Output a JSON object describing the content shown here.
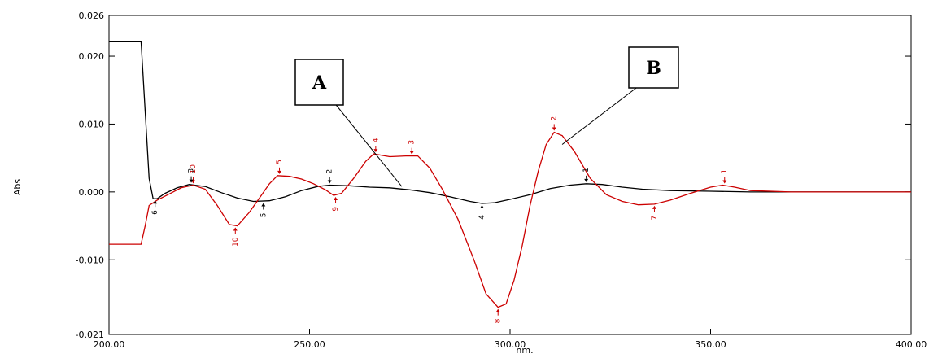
{
  "chart_data": {
    "type": "line",
    "xlabel": "nm.",
    "ylabel": "Abs",
    "xlim": [
      200,
      400
    ],
    "ylim": [
      -0.021,
      0.026
    ],
    "grid": false,
    "x_ticks": [
      {
        "value": 200,
        "label": "200.00"
      },
      {
        "value": 250,
        "label": "250.00"
      },
      {
        "value": 300,
        "label": "300.00"
      },
      {
        "value": 350,
        "label": "350.00"
      },
      {
        "value": 400,
        "label": "400.00"
      }
    ],
    "y_ticks": [
      {
        "value": 0.026,
        "label": "0.026"
      },
      {
        "value": 0.02,
        "label": "0.020"
      },
      {
        "value": 0.01,
        "label": "0.010"
      },
      {
        "value": 0.0,
        "label": "0.000"
      },
      {
        "value": -0.01,
        "label": "-0.010"
      },
      {
        "value": -0.021,
        "label": "-0.021"
      }
    ],
    "series": [
      {
        "color": "#000000",
        "points": [
          [
            200,
            0.0222
          ],
          [
            208,
            0.0222
          ],
          [
            209,
            0.012
          ],
          [
            210,
            0.002
          ],
          [
            211,
            -0.001
          ],
          [
            212,
            -0.001
          ],
          [
            214,
            -0.0002
          ],
          [
            217,
            0.0006
          ],
          [
            220,
            0.0011
          ],
          [
            224,
            0.0008
          ],
          [
            228,
            -0.0001
          ],
          [
            232,
            -0.0009
          ],
          [
            236,
            -0.0014
          ],
          [
            240,
            -0.0013
          ],
          [
            244,
            -0.0007
          ],
          [
            248,
            0.0002
          ],
          [
            252,
            0.0008
          ],
          [
            255,
            0.001
          ],
          [
            260,
            0.0009
          ],
          [
            265,
            0.0007
          ],
          [
            270,
            0.0006
          ],
          [
            275,
            0.0003
          ],
          [
            280,
            -0.0001
          ],
          [
            285,
            -0.0007
          ],
          [
            290,
            -0.0014
          ],
          [
            293,
            -0.0017
          ],
          [
            296,
            -0.0016
          ],
          [
            300,
            -0.0011
          ],
          [
            305,
            -0.0004
          ],
          [
            310,
            0.0005
          ],
          [
            315,
            0.001
          ],
          [
            319,
            0.0012
          ],
          [
            323,
            0.0011
          ],
          [
            328,
            0.0007
          ],
          [
            333,
            0.0004
          ],
          [
            340,
            0.0002
          ],
          [
            350,
            0.0001
          ],
          [
            360,
            0.0
          ],
          [
            380,
            0.0
          ],
          [
            400,
            0.0
          ]
        ]
      },
      {
        "color": "#cc0000",
        "points": [
          [
            200,
            -0.0077
          ],
          [
            208,
            -0.0077
          ],
          [
            209,
            -0.005
          ],
          [
            210,
            -0.002
          ],
          [
            212,
            -0.0012
          ],
          [
            215,
            -0.0003
          ],
          [
            218,
            0.0006
          ],
          [
            221,
            0.001
          ],
          [
            224,
            0.0004
          ],
          [
            227,
            -0.002
          ],
          [
            230,
            -0.0048
          ],
          [
            232,
            -0.005
          ],
          [
            235,
            -0.003
          ],
          [
            238,
            -0.0005
          ],
          [
            240,
            0.0012
          ],
          [
            242,
            0.0024
          ],
          [
            245,
            0.0023
          ],
          [
            248,
            0.0019
          ],
          [
            251,
            0.0012
          ],
          [
            254,
            0.0003
          ],
          [
            256,
            -0.0005
          ],
          [
            258,
            -0.0002
          ],
          [
            261,
            0.002
          ],
          [
            264,
            0.0045
          ],
          [
            266,
            0.0056
          ],
          [
            270,
            0.0052
          ],
          [
            274,
            0.0053
          ],
          [
            277,
            0.0053
          ],
          [
            280,
            0.0035
          ],
          [
            283,
            0.0005
          ],
          [
            287,
            -0.004
          ],
          [
            291,
            -0.01
          ],
          [
            294,
            -0.015
          ],
          [
            297,
            -0.017
          ],
          [
            299,
            -0.0165
          ],
          [
            301,
            -0.013
          ],
          [
            303,
            -0.008
          ],
          [
            305,
            -0.002
          ],
          [
            307,
            0.003
          ],
          [
            309,
            0.007
          ],
          [
            311,
            0.0088
          ],
          [
            313,
            0.0083
          ],
          [
            316,
            0.006
          ],
          [
            320,
            0.002
          ],
          [
            324,
            -0.0004
          ],
          [
            328,
            -0.0014
          ],
          [
            332,
            -0.0019
          ],
          [
            336,
            -0.0018
          ],
          [
            340,
            -0.0012
          ],
          [
            345,
            -0.0002
          ],
          [
            350,
            0.0007
          ],
          [
            353,
            0.001
          ],
          [
            356,
            0.0007
          ],
          [
            360,
            0.0002
          ],
          [
            370,
            0.0
          ],
          [
            400,
            0.0
          ]
        ]
      }
    ],
    "peak_labels": [
      {
        "text": "10",
        "x": 221,
        "y": 0.001,
        "color": "#cc0000",
        "pos": "above"
      },
      {
        "text": "5",
        "x": 242.5,
        "y": 0.0024,
        "color": "#cc0000",
        "pos": "above"
      },
      {
        "text": "4",
        "x": 266.5,
        "y": 0.0056,
        "color": "#cc0000",
        "pos": "above"
      },
      {
        "text": "3",
        "x": 275.5,
        "y": 0.0053,
        "color": "#cc0000",
        "pos": "above"
      },
      {
        "text": "2",
        "x": 311,
        "y": 0.0088,
        "color": "#cc0000",
        "pos": "above"
      },
      {
        "text": "1",
        "x": 353.5,
        "y": 0.001,
        "color": "#cc0000",
        "pos": "above"
      },
      {
        "text": "10",
        "x": 231.5,
        "y": -0.005,
        "color": "#cc0000",
        "pos": "below"
      },
      {
        "text": "9",
        "x": 256.5,
        "y": -0.0005,
        "color": "#cc0000",
        "pos": "below"
      },
      {
        "text": "8",
        "x": 297,
        "y": -0.017,
        "color": "#cc0000",
        "pos": "below"
      },
      {
        "text": "7",
        "x": 336,
        "y": -0.0018,
        "color": "#cc0000",
        "pos": "below"
      },
      {
        "text": "3",
        "x": 220.5,
        "y": 0.0011,
        "color": "#000000",
        "pos": "above"
      },
      {
        "text": "2",
        "x": 255,
        "y": 0.001,
        "color": "#000000",
        "pos": "above"
      },
      {
        "text": "1",
        "x": 319,
        "y": 0.0012,
        "color": "#000000",
        "pos": "above"
      },
      {
        "text": "6",
        "x": 211.5,
        "y": -0.001,
        "color": "#000000",
        "pos": "below"
      },
      {
        "text": "5",
        "x": 238.5,
        "y": -0.0014,
        "color": "#000000",
        "pos": "below"
      },
      {
        "text": "4",
        "x": 293,
        "y": -0.0017,
        "color": "#000000",
        "pos": "below"
      }
    ],
    "callouts": [
      {
        "label": "A",
        "target_x": 273,
        "target_y": 0.0008
      },
      {
        "label": "B",
        "target_x": 313,
        "target_y": 0.007
      }
    ]
  }
}
